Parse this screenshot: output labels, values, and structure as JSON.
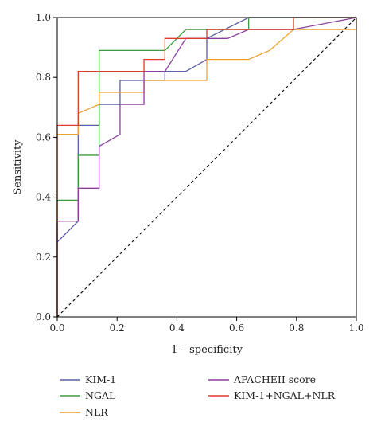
{
  "chart_data": {
    "type": "line",
    "title": "",
    "xlabel": "1 – specificity",
    "ylabel": "Sensitivity",
    "xlim": [
      0,
      1
    ],
    "ylim": [
      0,
      1
    ],
    "x_ticks": [
      "0.0",
      "0.2",
      "0.4",
      "0.6",
      "0.8",
      "1.0"
    ],
    "y_ticks": [
      "0.0",
      "0.2",
      "0.4",
      "0.6",
      "0.8",
      "1.0"
    ],
    "grid": false,
    "legend_position": "bottom",
    "reference_line": {
      "style": "dashed",
      "color": "#000000",
      "x": [
        0,
        1
      ],
      "y": [
        0,
        1
      ]
    },
    "series": [
      {
        "name": "KIM-1",
        "color": "#5b5fa8",
        "x": [
          0,
          0.07,
          0.07,
          0.14,
          0.14,
          0.21,
          0.21,
          0.36,
          0.36,
          0.43,
          0.5,
          0.5,
          0.64,
          0.93,
          1.0
        ],
        "y": [
          0.25,
          0.32,
          0.64,
          0.64,
          0.71,
          0.71,
          0.79,
          0.79,
          0.82,
          0.82,
          0.86,
          0.93,
          1.0,
          1.0,
          1.0
        ]
      },
      {
        "name": "NGAL",
        "color": "#3f9a3f",
        "x": [
          0,
          0,
          0.07,
          0.07,
          0.14,
          0.14,
          0.36,
          0.43,
          0.57,
          0.57,
          0.64,
          0.64,
          1.0
        ],
        "y": [
          0,
          0.39,
          0.39,
          0.54,
          0.54,
          0.89,
          0.89,
          0.96,
          0.96,
          0.96,
          0.96,
          1.0,
          1.0
        ]
      },
      {
        "name": "NLR",
        "color": "#f0a030",
        "x": [
          0,
          0,
          0.07,
          0.07,
          0.14,
          0.14,
          0.29,
          0.29,
          0.5,
          0.5,
          0.64,
          0.71,
          0.79,
          0.79,
          1.0,
          1.0
        ],
        "y": [
          0,
          0.61,
          0.61,
          0.68,
          0.71,
          0.75,
          0.75,
          0.79,
          0.79,
          0.86,
          0.86,
          0.89,
          0.96,
          0.96,
          0.96,
          1.0
        ]
      },
      {
        "name": "APACHEII score",
        "color": "#8a3f9a",
        "x": [
          0,
          0,
          0.07,
          0.07,
          0.14,
          0.14,
          0.21,
          0.21,
          0.29,
          0.29,
          0.36,
          0.43,
          0.57,
          0.64,
          0.79,
          1.0
        ],
        "y": [
          0,
          0.32,
          0.32,
          0.43,
          0.43,
          0.57,
          0.61,
          0.71,
          0.71,
          0.82,
          0.82,
          0.93,
          0.93,
          0.96,
          0.96,
          1.0
        ]
      },
      {
        "name": "KIM-1+NGAL+NLR",
        "color": "#e03a2a",
        "x": [
          0,
          0,
          0.07,
          0.07,
          0.29,
          0.29,
          0.36,
          0.36,
          0.5,
          0.5,
          0.79,
          0.79,
          1.0
        ],
        "y": [
          0,
          0.64,
          0.64,
          0.82,
          0.82,
          0.86,
          0.86,
          0.93,
          0.93,
          0.96,
          0.96,
          1.0,
          1.0
        ]
      }
    ]
  }
}
